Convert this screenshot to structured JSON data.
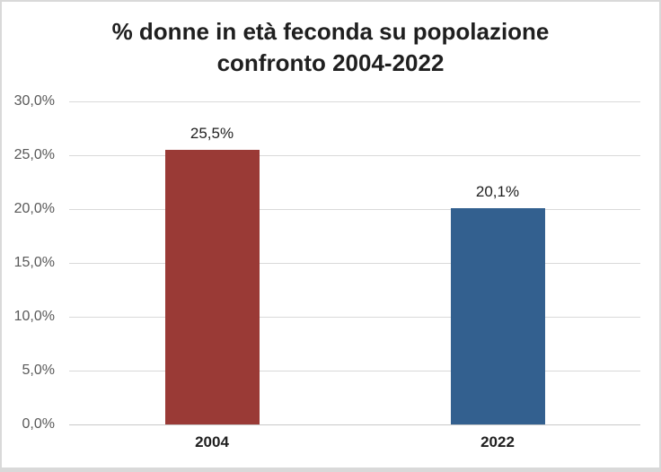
{
  "chart": {
    "title_line1": "% donne in età feconda su popolazione",
    "title_line2": "confronto 2004-2022"
  },
  "chart_data": {
    "type": "bar",
    "title": "% donne in età feconda su popolazione confronto 2004-2022",
    "categories": [
      "2004",
      "2022"
    ],
    "values": [
      25.5,
      20.1
    ],
    "value_labels": [
      "25,5%",
      "20,1%"
    ],
    "bar_colors": [
      "#9a3a36",
      "#33608f"
    ],
    "xlabel": "",
    "ylabel": "",
    "ylim": [
      0,
      30
    ],
    "yticks": [
      {
        "value": 0,
        "label": "0,0%"
      },
      {
        "value": 5,
        "label": "5,0%"
      },
      {
        "value": 10,
        "label": "10,0%"
      },
      {
        "value": 15,
        "label": "15,0%"
      },
      {
        "value": 20,
        "label": "20,0%"
      },
      {
        "value": 25,
        "label": "25,0%"
      },
      {
        "value": 30,
        "label": "30,0%"
      }
    ],
    "grid": true,
    "legend_position": "none",
    "colors": {
      "gridline": "#d9d9d9",
      "axis_line": "#c8c8c8",
      "tick_label": "#595959",
      "title_text": "#1f1f1f",
      "frame_border": "#d9d9d9"
    }
  }
}
